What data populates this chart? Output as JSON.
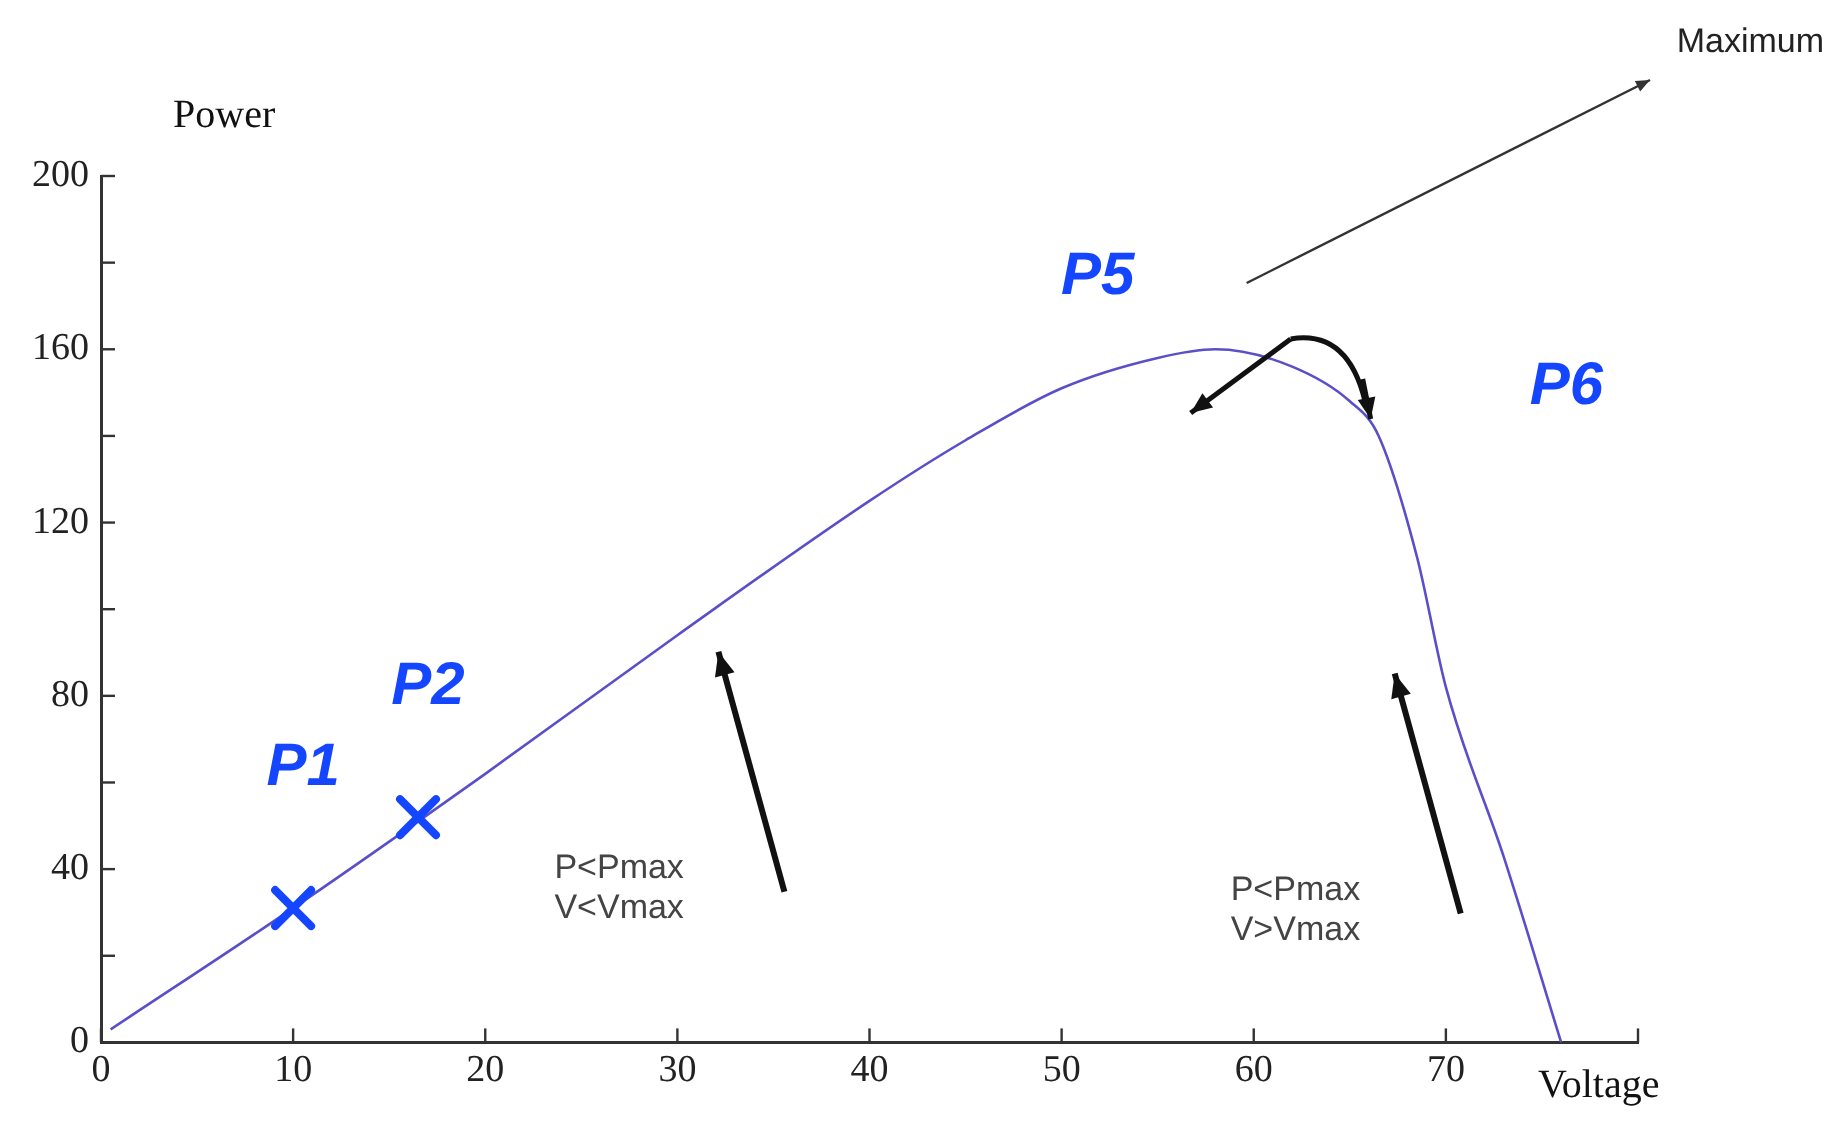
{
  "chart_data": {
    "type": "line",
    "xlabel": "Voltage",
    "ylabel": "Power",
    "x": [
      0.5,
      10,
      20,
      30,
      40,
      45,
      50,
      55,
      58,
      62,
      65,
      66.5,
      68.5,
      70,
      73,
      76
    ],
    "series": [
      {
        "color": "#5a4fc8",
        "values": [
          3,
          31,
          62,
          94,
          125,
          139,
          151,
          158,
          160,
          156,
          148,
          140,
          112,
          82,
          43,
          0
        ]
      }
    ],
    "xlim": [
      0,
      80
    ],
    "xticks": [
      0,
      10,
      20,
      30,
      40,
      50,
      60,
      70,
      {
        "value": 80,
        "label": null
      }
    ],
    "ylim": [
      0,
      200
    ],
    "yticks": [
      0,
      {
        "value": 20,
        "label": null
      },
      40,
      {
        "value": 60,
        "label": null
      },
      80,
      {
        "value": 100,
        "label": null
      },
      120,
      {
        "value": 140,
        "label": null
      },
      160,
      {
        "value": 180,
        "label": null
      },
      200
    ],
    "grid": false,
    "legend": false,
    "marker": "none",
    "line_style": "solid",
    "annotations": [
      "Maximum",
      "P<Pmax\nV<Vmax",
      "P<Pmax\nV>Vmax",
      {
        "text": "P1",
        "x": 10,
        "y": 31
      },
      {
        "text": "P2",
        "x": 16.5,
        "y": 52
      },
      {
        "text": "P5",
        "x": 55,
        "y": 158
      },
      {
        "text": "P6",
        "x": 65,
        "y": 148
      }
    ]
  }
}
